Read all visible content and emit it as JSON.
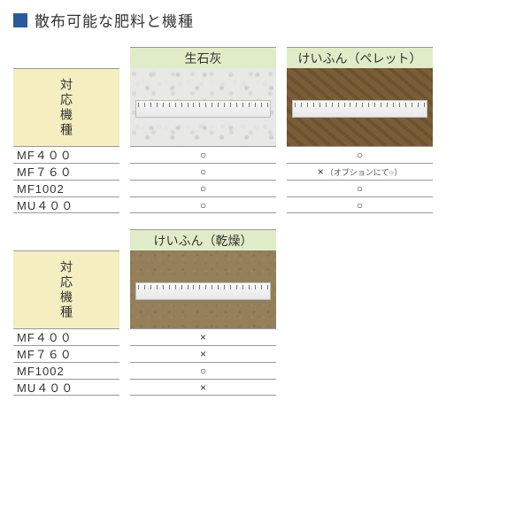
{
  "title": "散布可能な肥料と機種",
  "model_header_label": "対応機種",
  "models": [
    "MF４００",
    "MF７６０",
    "MF1002",
    "MU４００"
  ],
  "sections": [
    {
      "fertilizers": [
        {
          "name": "生石灰",
          "material_class": "mat-quicklime",
          "values": [
            {
              "mark": "○",
              "note": ""
            },
            {
              "mark": "○",
              "note": ""
            },
            {
              "mark": "○",
              "note": ""
            },
            {
              "mark": "○",
              "note": ""
            }
          ]
        },
        {
          "name": "けいふん（ペレット）",
          "material_class": "mat-pellet",
          "values": [
            {
              "mark": "○",
              "note": ""
            },
            {
              "mark": "×",
              "note": "（オプションにて○）"
            },
            {
              "mark": "○",
              "note": ""
            },
            {
              "mark": "○",
              "note": ""
            }
          ]
        }
      ]
    },
    {
      "fertilizers": [
        {
          "name": "けいふん（乾燥）",
          "material_class": "mat-dry",
          "values": [
            {
              "mark": "×",
              "note": ""
            },
            {
              "mark": "×",
              "note": ""
            },
            {
              "mark": "○",
              "note": ""
            },
            {
              "mark": "×",
              "note": ""
            }
          ]
        }
      ]
    }
  ],
  "colors": {
    "title_square": "#2a5a9c",
    "model_header_bg": "#f4eec0",
    "fert_header_bg": "#e0ecc8",
    "border": "#999999"
  }
}
